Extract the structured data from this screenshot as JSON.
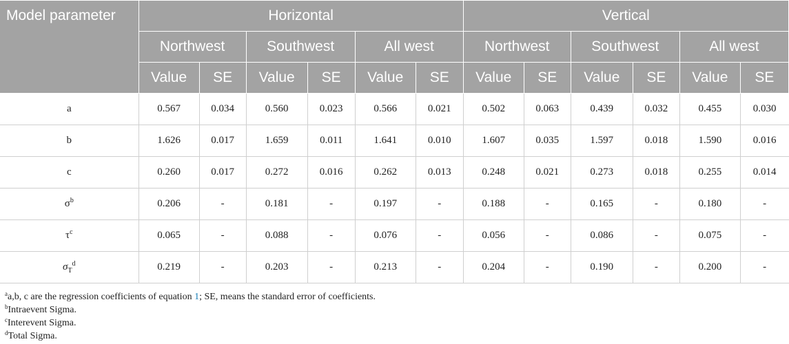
{
  "header": {
    "corner": "Model parameter",
    "groups": [
      "Horizontal",
      "Vertical"
    ],
    "regions": [
      "Northwest",
      "Southwest",
      "All west",
      "Northwest",
      "Southwest",
      "All west"
    ],
    "value_label": "Value",
    "se_label": "SE"
  },
  "rows": [
    {
      "param": "a",
      "values": [
        "0.567",
        "0.034",
        "0.560",
        "0.023",
        "0.566",
        "0.021",
        "0.502",
        "0.063",
        "0.439",
        "0.032",
        "0.455",
        "0.030"
      ]
    },
    {
      "param": "b",
      "values": [
        "1.626",
        "0.017",
        "1.659",
        "0.011",
        "1.641",
        "0.010",
        "1.607",
        "0.035",
        "1.597",
        "0.018",
        "1.590",
        "0.016"
      ]
    },
    {
      "param": "c",
      "values": [
        "0.260",
        "0.017",
        "0.272",
        "0.016",
        "0.262",
        "0.013",
        "0.248",
        "0.021",
        "0.273",
        "0.018",
        "0.255",
        "0.014"
      ]
    },
    {
      "param": "σ",
      "sup": "b",
      "values": [
        "0.206",
        "-",
        "0.181",
        "-",
        "0.197",
        "-",
        "0.188",
        "-",
        "0.165",
        "-",
        "0.180",
        "-"
      ]
    },
    {
      "param": "τ",
      "sup": "c",
      "values": [
        "0.065",
        "-",
        "0.088",
        "-",
        "0.076",
        "-",
        "0.056",
        "-",
        "0.086",
        "-",
        "0.075",
        "-"
      ]
    },
    {
      "param": "σ",
      "sub": "T",
      "sup": "d",
      "values": [
        "0.219",
        "-",
        "0.203",
        "-",
        "0.213",
        "-",
        "0.204",
        "-",
        "0.190",
        "-",
        "0.200",
        "-"
      ]
    }
  ],
  "notes": [
    {
      "mark": "a",
      "text_before": "a,b, c are the regression coefficients of equation ",
      "ref": "1",
      "text_after": "; SE, means the standard error of coefficients."
    },
    {
      "mark": "b",
      "text": "Intraevent Sigma."
    },
    {
      "mark": "c",
      "text": "Interevent Sigma."
    },
    {
      "mark": "d",
      "text": "Total Sigma."
    }
  ]
}
